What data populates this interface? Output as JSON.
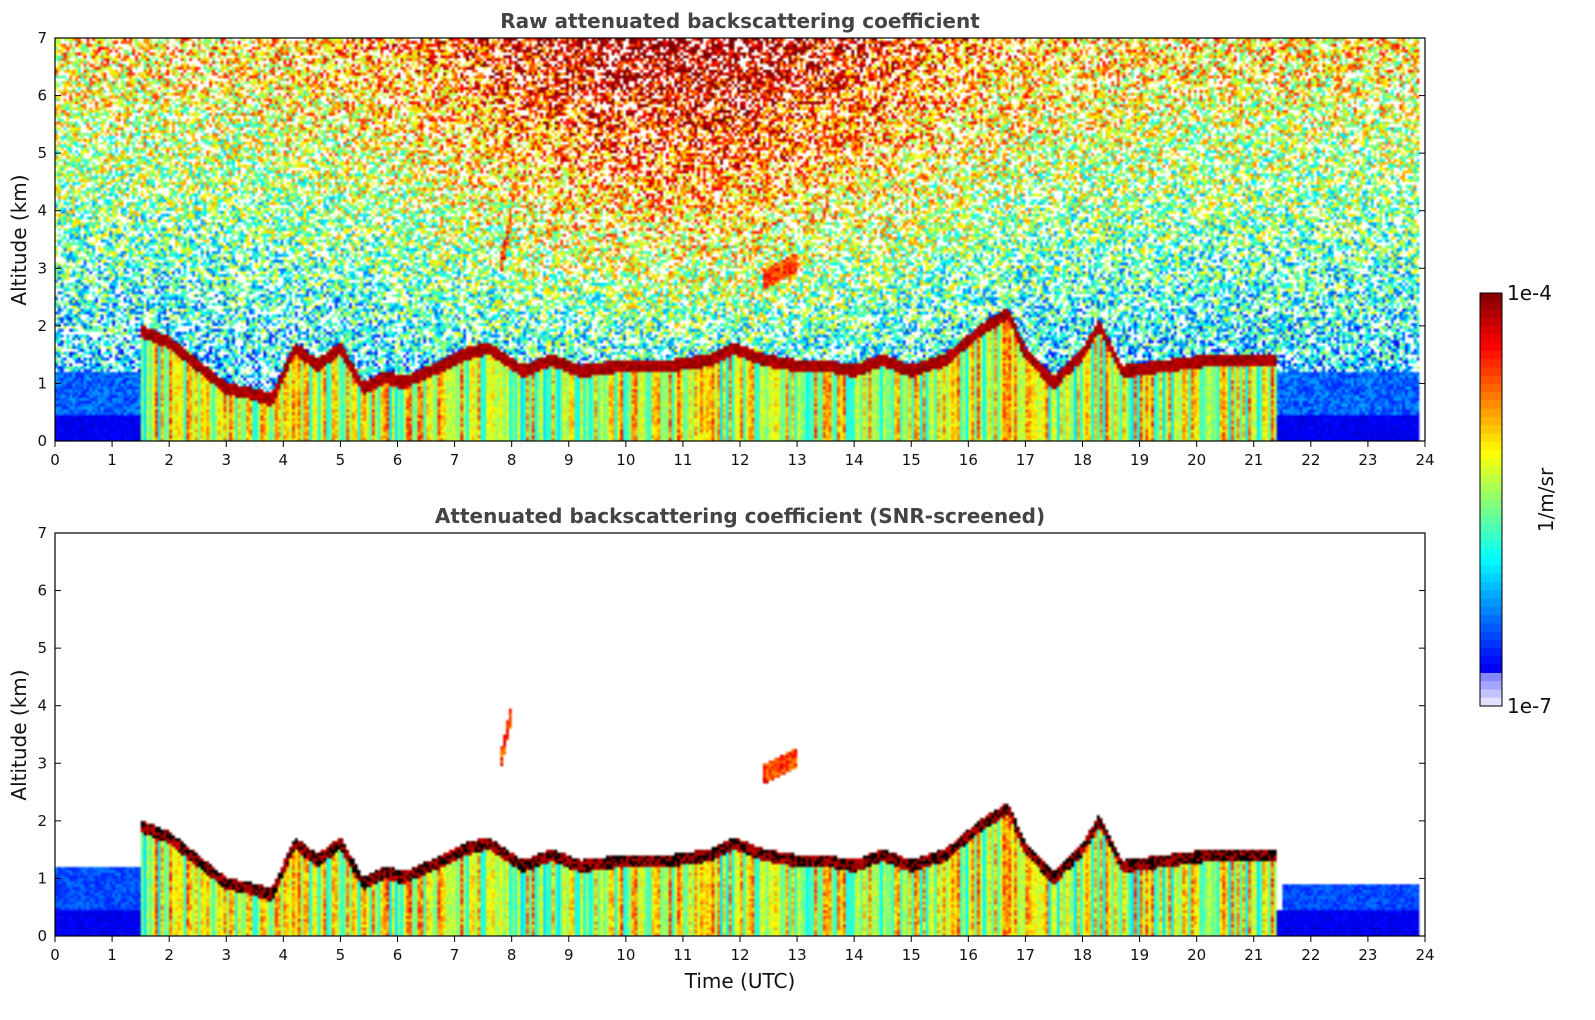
{
  "chart_data": [
    {
      "type": "heatmap",
      "title": "Raw attenuated backscattering coefficient",
      "xlabel": "",
      "ylabel": "Altitude (km)",
      "x_ticks": [
        "0",
        "1",
        "2",
        "3",
        "4",
        "5",
        "6",
        "7",
        "8",
        "9",
        "10",
        "11",
        "12",
        "13",
        "14",
        "15",
        "16",
        "17",
        "18",
        "19",
        "20",
        "21",
        "22",
        "23",
        "24"
      ],
      "y_ticks": [
        "0",
        "1",
        "2",
        "3",
        "4",
        "5",
        "6",
        "7"
      ],
      "xlim": [
        0,
        24
      ],
      "ylim": [
        0,
        7
      ],
      "data_end_hour": 23.9,
      "noise_background": true,
      "cloud_base_km": [
        [
          1.5,
          1.9
        ],
        [
          2.0,
          1.7
        ],
        [
          2.5,
          1.3
        ],
        [
          3.0,
          0.9
        ],
        [
          3.5,
          0.8
        ],
        [
          3.8,
          0.7
        ],
        [
          4.2,
          1.6
        ],
        [
          4.6,
          1.3
        ],
        [
          5.0,
          1.6
        ],
        [
          5.4,
          0.9
        ],
        [
          5.8,
          1.1
        ],
        [
          6.1,
          1.0
        ],
        [
          6.8,
          1.3
        ],
        [
          7.2,
          1.5
        ],
        [
          7.6,
          1.6
        ],
        [
          8.2,
          1.2
        ],
        [
          8.7,
          1.4
        ],
        [
          9.2,
          1.2
        ],
        [
          10.0,
          1.3
        ],
        [
          10.8,
          1.3
        ],
        [
          11.5,
          1.4
        ],
        [
          11.9,
          1.6
        ],
        [
          12.4,
          1.4
        ],
        [
          13.0,
          1.3
        ],
        [
          13.5,
          1.3
        ],
        [
          14.0,
          1.2
        ],
        [
          14.5,
          1.4
        ],
        [
          15.0,
          1.2
        ],
        [
          15.6,
          1.4
        ],
        [
          16.2,
          1.9
        ],
        [
          16.7,
          2.2
        ],
        [
          17.0,
          1.5
        ],
        [
          17.5,
          1.0
        ],
        [
          18.0,
          1.5
        ],
        [
          18.3,
          2.0
        ],
        [
          18.7,
          1.2
        ],
        [
          19.5,
          1.3
        ],
        [
          20.3,
          1.4
        ],
        [
          21.0,
          1.4
        ],
        [
          21.4,
          1.4
        ]
      ],
      "elevated_features_km": [
        {
          "t0": 7.8,
          "t1": 8.0,
          "z0": 3.0,
          "z1": 3.9
        },
        {
          "t0": 12.4,
          "t1": 13.0,
          "z0": 2.8,
          "z1": 3.1
        }
      ],
      "colorbar": {
        "min_label": "1e-7",
        "max_label": "1e-4",
        "unit": "1/m/sr",
        "scale": "log"
      }
    },
    {
      "type": "heatmap",
      "title": "Attenuated backscattering coefficient (SNR-screened)",
      "xlabel": "Time (UTC)",
      "ylabel": "Altitude (km)",
      "x_ticks": [
        "0",
        "1",
        "2",
        "3",
        "4",
        "5",
        "6",
        "7",
        "8",
        "9",
        "10",
        "11",
        "12",
        "13",
        "14",
        "15",
        "16",
        "17",
        "18",
        "19",
        "20",
        "21",
        "22",
        "23",
        "24"
      ],
      "y_ticks": [
        "0",
        "1",
        "2",
        "3",
        "4",
        "5",
        "6",
        "7"
      ],
      "xlim": [
        0,
        24
      ],
      "ylim": [
        0,
        7
      ],
      "data_end_hour": 23.9,
      "noise_background": false,
      "colorbar": {
        "min_label": "1e-7",
        "max_label": "1e-4",
        "unit": "1/m/sr",
        "scale": "log"
      }
    }
  ],
  "colorbar": {
    "max_label": "1e-4",
    "min_label": "1e-7",
    "unit_label": "1/m/sr",
    "colormap": "jet"
  }
}
